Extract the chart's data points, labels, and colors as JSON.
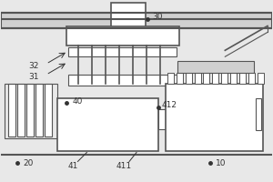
{
  "bg_color": "#e8e8e8",
  "line_color": "#555555",
  "lw": 0.8,
  "lw_thick": 1.2,
  "lw_rail": 1.5,
  "fig_w": 3.0,
  "fig_h": 2.0,
  "dpi": 100
}
